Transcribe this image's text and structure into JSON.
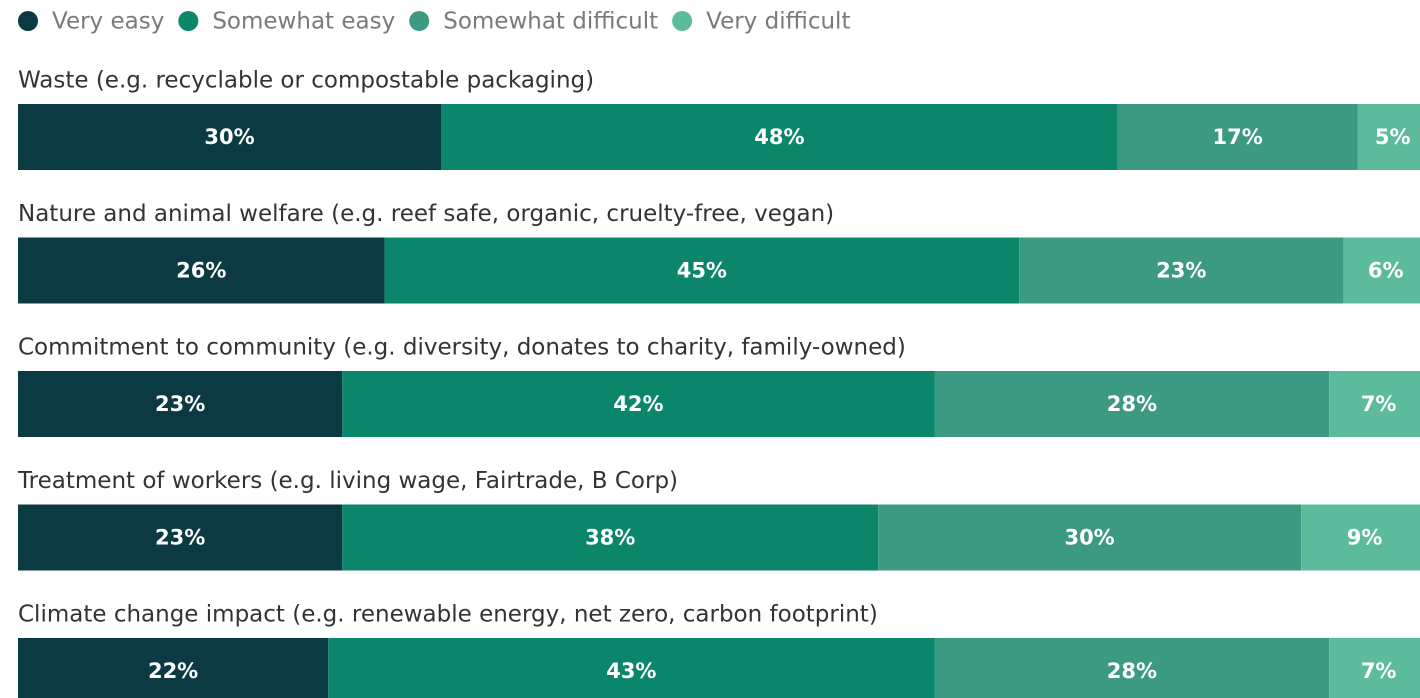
{
  "chart_data": {
    "type": "bar",
    "orientation": "horizontal",
    "stacked": true,
    "categories": [
      "Waste (e.g. recyclable or compostable packaging)",
      "Nature and animal welfare (e.g. reef safe, organic, cruelty-free, vegan)",
      "Commitment to community (e.g. diversity, donates to charity, family-owned)",
      "Treatment of workers (e.g. living wage, Fairtrade, B Corp)",
      "Climate change impact (e.g. renewable energy, net zero, carbon footprint)"
    ],
    "series": [
      {
        "name": "Very easy",
        "color": "#0b3a42",
        "values": [
          30,
          26,
          23,
          23,
          22
        ],
        "value_labels": [
          "30%",
          "26%",
          "23%",
          "23%",
          "22%"
        ]
      },
      {
        "name": "Somewhat easy",
        "color": "#0b866b",
        "values": [
          48,
          45,
          42,
          38,
          43
        ],
        "value_labels": [
          "48%",
          "45%",
          "42%",
          "38%",
          "43%"
        ]
      },
      {
        "name": "Somewhat difficult",
        "color": "#3d9a82",
        "values": [
          17,
          23,
          28,
          30,
          28
        ],
        "value_labels": [
          "17%",
          "23%",
          "28%",
          "30%",
          "28%"
        ]
      },
      {
        "name": "Very difficult",
        "color": "#5cbb9c",
        "values": [
          5,
          6,
          7,
          9,
          7
        ],
        "value_labels": [
          "5%",
          "6%",
          "7%",
          "9%",
          "7%"
        ]
      }
    ],
    "xlim": [
      0,
      100
    ]
  }
}
